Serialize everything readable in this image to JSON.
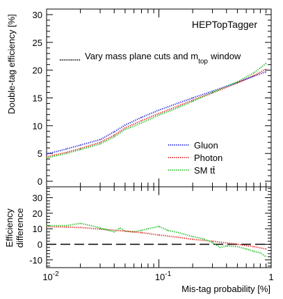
{
  "chart_data": [
    {
      "type": "line",
      "label": "HEPTopTagger",
      "annotation": "Vary mass plane cuts and m",
      "annotation_sub": "top",
      "annotation_tail": "window",
      "ylabel": "Double-tag efficiency [%]",
      "xscale": "log",
      "xlim": [
        0.01,
        1
      ],
      "ylim": [
        -1,
        31
      ],
      "y_ticks": [
        0,
        5,
        10,
        15,
        20,
        25,
        30
      ],
      "legend_position": "bottom-right",
      "legend_title_style": "dotted",
      "series": [
        {
          "name": "Gluon",
          "color": "#2222dd",
          "x": [
            0.01,
            0.015,
            0.02,
            0.03,
            0.04,
            0.05,
            0.07,
            0.1,
            0.15,
            0.2,
            0.3,
            0.5,
            0.7,
            0.9
          ],
          "y": [
            4.9,
            5.8,
            6.5,
            7.5,
            8.9,
            10.1,
            11.5,
            12.8,
            14.1,
            15.0,
            16.2,
            17.8,
            18.9,
            19.7
          ]
        },
        {
          "name": "Photon",
          "color": "#dd2222",
          "x": [
            0.01,
            0.015,
            0.02,
            0.03,
            0.04,
            0.05,
            0.07,
            0.1,
            0.15,
            0.2,
            0.3,
            0.5,
            0.7,
            0.9
          ],
          "y": [
            4.4,
            5.2,
            5.9,
            7.0,
            8.3,
            9.6,
            10.9,
            12.2,
            13.6,
            14.6,
            15.9,
            17.7,
            19.0,
            20.2
          ]
        },
        {
          "name": "SM tt̄",
          "color": "#22bb22",
          "x": [
            0.01,
            0.015,
            0.02,
            0.03,
            0.04,
            0.05,
            0.07,
            0.1,
            0.15,
            0.2,
            0.3,
            0.5,
            0.7,
            0.9
          ],
          "y": [
            4.2,
            5.0,
            5.7,
            6.7,
            8.0,
            9.3,
            10.5,
            11.9,
            13.3,
            14.4,
            16.0,
            17.9,
            19.5,
            21.2
          ]
        }
      ]
    },
    {
      "type": "line",
      "xlabel": "Mis-tag probability [%]",
      "ylabel_line1": "Efficiency",
      "ylabel_line2": "difference",
      "xscale": "log",
      "xlim": [
        0.01,
        1
      ],
      "ylim": [
        -15,
        37
      ],
      "y_ticks": [
        -10,
        0,
        10,
        20,
        30
      ],
      "x_ticks": [
        {
          "base": "10",
          "exp": "-2",
          "value": 0.01
        },
        {
          "base": "10",
          "exp": "-1",
          "value": 0.1
        },
        {
          "base": "1",
          "exp": "",
          "value": 1
        }
      ],
      "reference_line": 0,
      "series": [
        {
          "name": "Photon",
          "color": "#dd2222",
          "x": [
            0.01,
            0.02,
            0.03,
            0.05,
            0.07,
            0.1,
            0.15,
            0.2,
            0.3,
            0.5,
            0.7,
            0.9
          ],
          "y": [
            11.5,
            10.8,
            9.8,
            8.5,
            7.5,
            6.0,
            4.5,
            3.2,
            2.0,
            0.0,
            -1.5,
            -3.0
          ]
        },
        {
          "name": "SM tt̄",
          "color": "#22bb22",
          "x": [
            0.01,
            0.015,
            0.02,
            0.025,
            0.03,
            0.04,
            0.045,
            0.05,
            0.06,
            0.07,
            0.08,
            0.1,
            0.12,
            0.15,
            0.2,
            0.25,
            0.3,
            0.35,
            0.4,
            0.5,
            0.6,
            0.7,
            0.8,
            0.9
          ],
          "y": [
            12.0,
            12.0,
            13.5,
            12.0,
            10.5,
            8.0,
            10.5,
            8.5,
            8.0,
            9.0,
            10.0,
            11.5,
            9.0,
            7.5,
            5.0,
            3.5,
            1.0,
            -2.0,
            -1.0,
            -1.5,
            -3.0,
            -4.5,
            -5.5,
            -8.0
          ]
        }
      ]
    }
  ]
}
